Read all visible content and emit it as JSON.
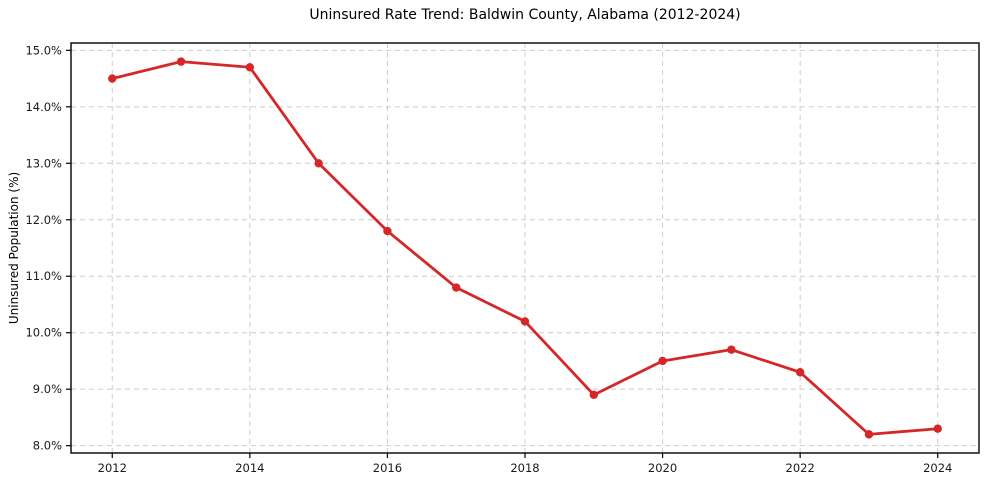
{
  "figure": {
    "title": "Uninsured Rate Trend: Baldwin County, Alabama (2012-2024)",
    "ylabel": "Uninsured Population (%)"
  },
  "chart_data": {
    "type": "line",
    "title": "Uninsured Rate Trend: Baldwin County, Alabama (2012-2024)",
    "xlabel": "",
    "ylabel": "Uninsured Population (%)",
    "x": [
      2012,
      2013,
      2014,
      2015,
      2016,
      2017,
      2018,
      2019,
      2020,
      2021,
      2022,
      2023,
      2024
    ],
    "values": [
      14.5,
      14.8,
      14.7,
      13.0,
      11.8,
      10.8,
      10.2,
      8.9,
      9.5,
      9.7,
      9.3,
      8.2,
      8.3
    ],
    "xlim": [
      2011.4,
      2024.6
    ],
    "ylim": [
      7.87,
      15.13
    ],
    "xticks": {
      "values": [
        2012,
        2014,
        2016,
        2018,
        2020,
        2022,
        2024
      ],
      "labels": [
        "2012",
        "2014",
        "2016",
        "2018",
        "2020",
        "2022",
        "2024"
      ]
    },
    "yticks": {
      "values": [
        8,
        9,
        10,
        11,
        12,
        13,
        14,
        15
      ],
      "labels": [
        "8.0%",
        "9.0%",
        "10.0%",
        "11.0%",
        "12.0%",
        "13.0%",
        "14.0%",
        "15.0%"
      ]
    },
    "grid": true,
    "legend_position": "none",
    "colors": {
      "line": "#d62728",
      "marker": "#d62728",
      "grid": "#cccccc",
      "axis": "#000000",
      "tick_text": "#1a1a1a"
    }
  }
}
